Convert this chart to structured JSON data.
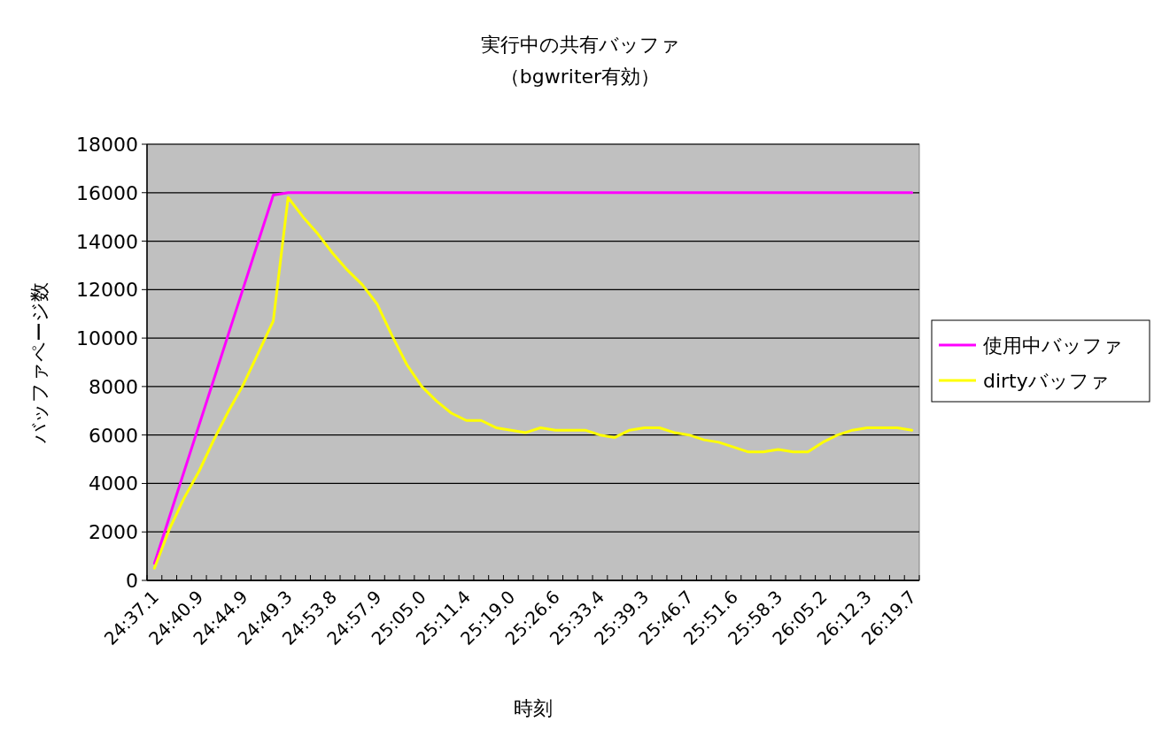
{
  "chart_data": {
    "type": "line",
    "title": "実行中の共有バッファ",
    "subtitle": "（bgwriter有効）",
    "xlabel": "時刻",
    "ylabel": "バッファページ数",
    "categories": [
      "24:37.1",
      null,
      null,
      "24:40.9",
      null,
      null,
      "24:44.9",
      null,
      null,
      "24:49.3",
      null,
      null,
      "24:53.8",
      null,
      null,
      "24:57.9",
      null,
      null,
      "25:05.0",
      null,
      null,
      "25:11.4",
      null,
      null,
      "25:19.0",
      null,
      null,
      "25:26.6",
      null,
      null,
      "25:33.4",
      null,
      null,
      "25:39.3",
      null,
      null,
      "25:46.7",
      null,
      null,
      "25:51.6",
      null,
      null,
      "25:58.3",
      null,
      null,
      "26:05.2",
      null,
      null,
      "26:12.3",
      null,
      null,
      "26:19.7"
    ],
    "series": [
      {
        "name": "使用中バッファ",
        "color": "#ff00ff",
        "values": [
          700,
          2600,
          4500,
          6400,
          8300,
          10200,
          12100,
          14000,
          15900,
          16000,
          16000,
          16000,
          16000,
          16000,
          16000,
          16000,
          16000,
          16000,
          16000,
          16000,
          16000,
          16000,
          16000,
          16000,
          16000,
          16000,
          16000,
          16000,
          16000,
          16000,
          16000,
          16000,
          16000,
          16000,
          16000,
          16000,
          16000,
          16000,
          16000,
          16000,
          16000,
          16000,
          16000,
          16000,
          16000,
          16000,
          16000,
          16000,
          16000,
          16000,
          16000,
          16000
        ]
      },
      {
        "name": "dirtyバッファ",
        "color": "#ffff00",
        "values": [
          500,
          2100,
          3400,
          4500,
          5800,
          7000,
          8100,
          9400,
          10700,
          15800,
          15000,
          14300,
          13500,
          12800,
          12200,
          11400,
          10100,
          8900,
          8000,
          7400,
          6900,
          6600,
          6600,
          6300,
          6200,
          6100,
          6300,
          6200,
          6200,
          6200,
          6000,
          5900,
          6200,
          6300,
          6300,
          6100,
          6000,
          5800,
          5700,
          5500,
          5300,
          5300,
          5400,
          5300,
          5300,
          5700,
          6000,
          6200,
          6300,
          6300,
          6300,
          6200
        ]
      }
    ],
    "ylim": [
      0,
      18000
    ],
    "yticks": [
      0,
      2000,
      4000,
      6000,
      8000,
      10000,
      12000,
      14000,
      16000,
      18000
    ],
    "grid": "y",
    "legend": "right"
  }
}
